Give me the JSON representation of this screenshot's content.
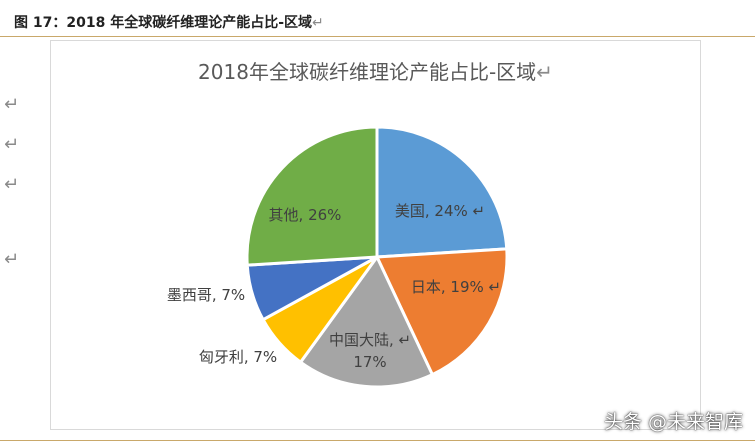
{
  "caption": {
    "number": "图 17：",
    "title": "2018 年全球碳纤维理论产能占比-区域",
    "mark": "↵"
  },
  "side_marks": [
    "↵",
    "↵",
    "↵",
    "↵"
  ],
  "chart_data": {
    "type": "pie",
    "title": "2018年全球碳纤维理论产能占比-区域",
    "title_mark": "↵",
    "slices": [
      {
        "name": "美国",
        "value": 24,
        "color": "#5b9bd5",
        "label": "美国, 24%",
        "mark": "↵"
      },
      {
        "name": "日本",
        "value": 19,
        "color": "#ed7d31",
        "label": "日本, 19%",
        "mark": "↵"
      },
      {
        "name": "中国大陆",
        "value": 17,
        "color": "#a5a5a5",
        "label": "中国大陆, 17%",
        "mark": "↵"
      },
      {
        "name": "匈牙利",
        "value": 7,
        "color": "#ffc000",
        "label": "匈牙利, 7%",
        "mark": ""
      },
      {
        "name": "墨西哥",
        "value": 7,
        "color": "#4472c4",
        "label": "墨西哥, 7%",
        "mark": ""
      },
      {
        "name": "其他",
        "value": 26,
        "color": "#70ad47",
        "label": "其他, 26%",
        "mark": ""
      }
    ]
  },
  "watermark": "头条 @未来智库"
}
